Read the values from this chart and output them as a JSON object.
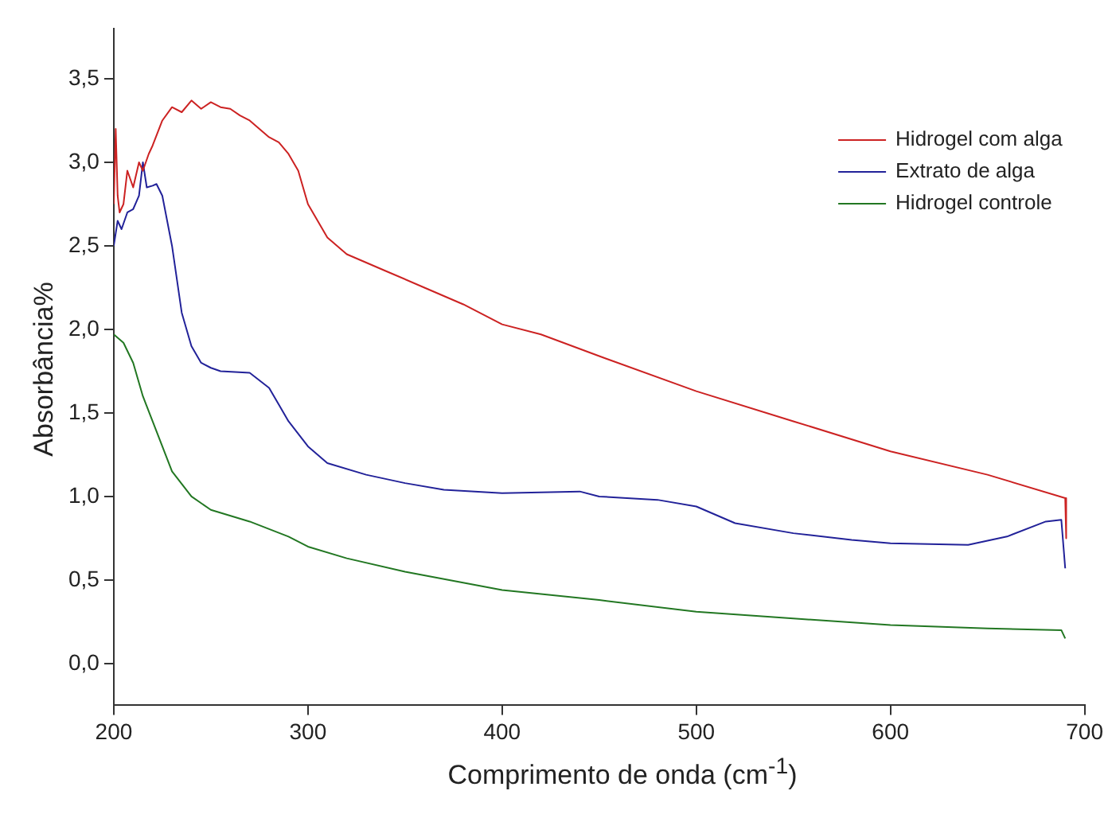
{
  "chart_data": {
    "type": "line",
    "xlabel": "Comprimento de onda (cm$^{-1}$)",
    "ylabel": "Absorbância%",
    "xlim": [
      200,
      700
    ],
    "xticks": [
      200,
      300,
      400,
      500,
      600,
      700
    ],
    "ylim": [
      -0.25,
      3.8
    ],
    "yticks": [
      {
        "value": 0,
        "label": "0,0"
      },
      {
        "value": 0.5,
        "label": "0,5"
      },
      {
        "value": 1,
        "label": "1,0"
      },
      {
        "value": 1.5,
        "label": "1,5"
      },
      {
        "value": 2,
        "label": "2,0"
      },
      {
        "value": 2.5,
        "label": "2,5"
      },
      {
        "value": 3,
        "label": "3,0"
      },
      {
        "value": 3.5,
        "label": "3,5"
      }
    ],
    "grid": false,
    "legend": "top right",
    "marker": "none",
    "line_style": "solid",
    "series": [
      {
        "name": "Hidrogel com alga",
        "color": "#cc2222",
        "x": [
          200,
          201,
          202,
          203,
          205,
          207,
          210,
          213,
          215,
          218,
          220,
          225,
          230,
          235,
          240,
          245,
          250,
          255,
          260,
          265,
          270,
          275,
          280,
          285,
          290,
          295,
          300,
          310,
          320,
          340,
          360,
          380,
          400,
          420,
          450,
          500,
          550,
          600,
          650,
          690,
          690.5
        ],
        "values": [
          2.75,
          3.2,
          2.8,
          2.7,
          2.75,
          2.95,
          2.85,
          3.0,
          2.95,
          3.05,
          3.1,
          3.25,
          3.33,
          3.3,
          3.37,
          3.32,
          3.36,
          3.33,
          3.32,
          3.28,
          3.25,
          3.2,
          3.15,
          3.12,
          3.05,
          2.95,
          2.75,
          2.55,
          2.45,
          2.35,
          2.25,
          2.15,
          2.03,
          1.97,
          1.84,
          1.63,
          1.45,
          1.27,
          1.13,
          0.99,
          0.75
        ]
      },
      {
        "name": "Extrato de alga",
        "color": "#222299",
        "x": [
          200,
          202,
          204,
          207,
          210,
          213,
          215,
          217,
          220,
          222,
          225,
          230,
          235,
          240,
          245,
          250,
          255,
          270,
          280,
          290,
          300,
          310,
          330,
          350,
          370,
          400,
          440,
          450,
          480,
          500,
          520,
          550,
          580,
          600,
          640,
          660,
          680,
          688,
          690
        ],
        "values": [
          2.5,
          2.65,
          2.6,
          2.7,
          2.72,
          2.8,
          3.0,
          2.85,
          2.86,
          2.87,
          2.8,
          2.5,
          2.1,
          1.9,
          1.8,
          1.77,
          1.75,
          1.74,
          1.65,
          1.45,
          1.3,
          1.2,
          1.13,
          1.08,
          1.04,
          1.02,
          1.03,
          1.0,
          0.98,
          0.94,
          0.84,
          0.78,
          0.74,
          0.72,
          0.71,
          0.76,
          0.85,
          0.86,
          0.57
        ]
      },
      {
        "name": "Hidrogel controle",
        "color": "#227722",
        "x": [
          200,
          205,
          210,
          215,
          220,
          230,
          240,
          250,
          270,
          290,
          300,
          320,
          350,
          400,
          450,
          500,
          550,
          600,
          650,
          688,
          690
        ],
        "values": [
          1.97,
          1.92,
          1.8,
          1.6,
          1.45,
          1.15,
          1.0,
          0.92,
          0.85,
          0.76,
          0.7,
          0.63,
          0.55,
          0.44,
          0.38,
          0.31,
          0.27,
          0.23,
          0.21,
          0.2,
          0.15
        ]
      }
    ]
  }
}
